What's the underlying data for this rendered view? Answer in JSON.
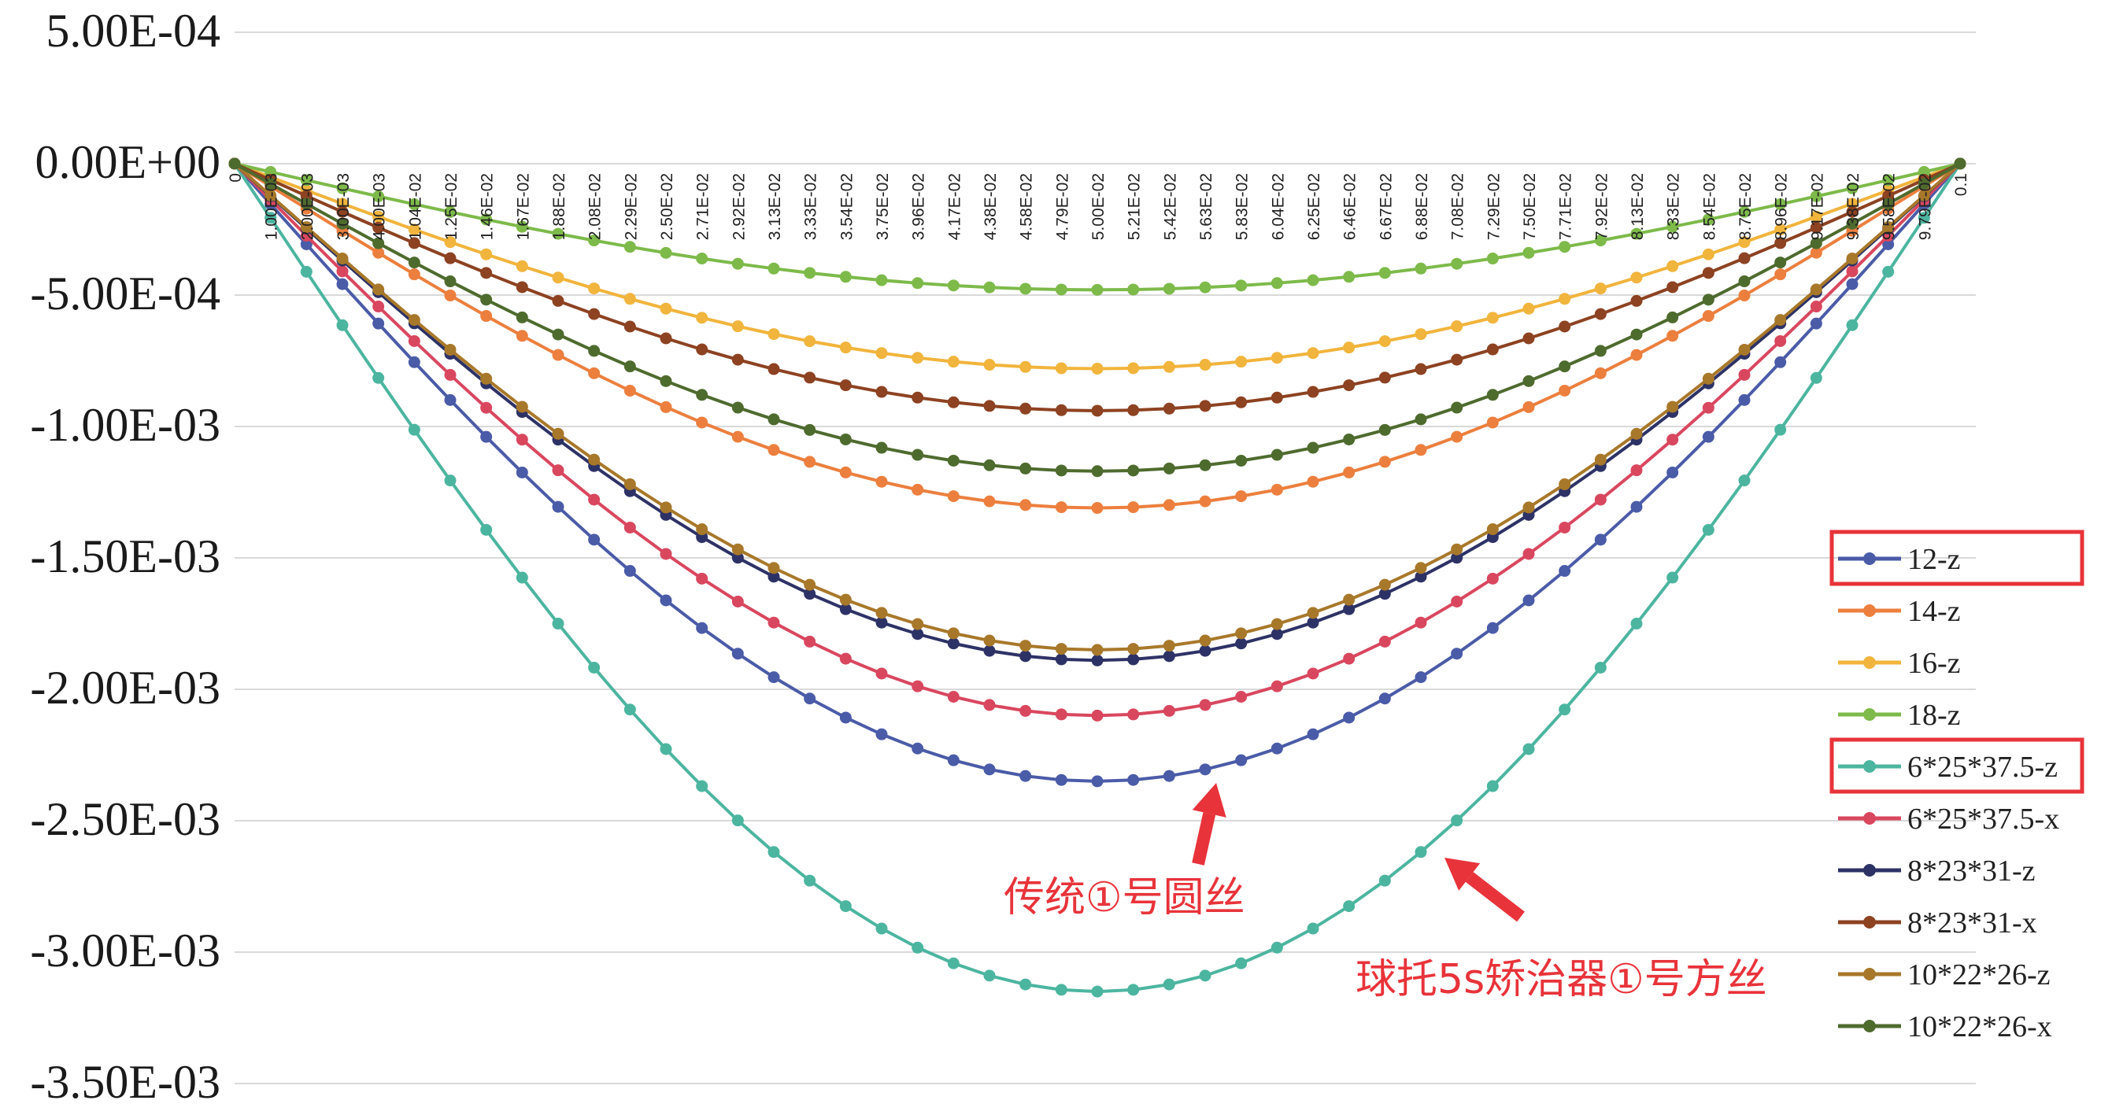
{
  "chart_data": {
    "type": "line",
    "title": "",
    "xlabel": "",
    "ylabel": "",
    "ylim": [
      -0.0035,
      0.0005
    ],
    "yticks": [
      "5.00E-04",
      "0.00E+00",
      "-5.00E-04",
      "-1.00E-03",
      "-1.50E-03",
      "-2.00E-03",
      "-2.50E-03",
      "-3.00E-03",
      "-3.50E-03"
    ],
    "ytick_values": [
      0.0005,
      0,
      -0.0005,
      -0.001,
      -0.0015,
      -0.002,
      -0.0025,
      -0.003,
      -0.0035
    ],
    "x_tick_labels": [
      "0",
      "1.00E-03",
      "2.00E-03",
      "3.00E-03",
      "4.00E-03",
      "1.04E-02",
      "1.25E-02",
      "1.46E-02",
      "1.67E-02",
      "1.88E-02",
      "2.08E-02",
      "2.29E-02",
      "2.50E-02",
      "2.71E-02",
      "2.92E-02",
      "3.13E-02",
      "3.33E-02",
      "3.54E-02",
      "3.75E-02",
      "3.96E-02",
      "4.17E-02",
      "4.38E-02",
      "4.58E-02",
      "4.79E-02",
      "5.00E-02",
      "5.21E-02",
      "5.42E-02",
      "5.63E-02",
      "5.83E-02",
      "6.04E-02",
      "6.25E-02",
      "6.46E-02",
      "6.67E-02",
      "6.88E-02",
      "7.08E-02",
      "7.29E-02",
      "7.50E-02",
      "7.71E-02",
      "7.92E-02",
      "8.13E-02",
      "8.33E-02",
      "8.54E-02",
      "8.75E-02",
      "8.96E-02",
      "9.17E-02",
      "9.38E-02",
      "9.58E-02",
      "9.79E-02",
      "0.1"
    ],
    "grid": true,
    "legend_position": "right",
    "series": [
      {
        "name": "12-z",
        "color": "#4a5ba8",
        "min": -0.00235
      },
      {
        "name": "14-z",
        "color": "#ec7f3e",
        "min": -0.00131
      },
      {
        "name": "16-z",
        "color": "#f1b43c",
        "min": -0.00078
      },
      {
        "name": "18-z",
        "color": "#7dba4a",
        "min": -0.00048
      },
      {
        "name": "6*25*37.5-z",
        "color": "#4cb5a0",
        "min": -0.00315
      },
      {
        "name": "6*25*37.5-x",
        "color": "#d9475f",
        "min": -0.0021
      },
      {
        "name": "8*23*31-z",
        "color": "#2d3266",
        "min": -0.00189
      },
      {
        "name": "8*23*31-x",
        "color": "#8d4221",
        "min": -0.00094
      },
      {
        "name": "10*22*26-z",
        "color": "#a8782a",
        "min": -0.00185
      },
      {
        "name": "10*22*26-x",
        "color": "#4e6b2e",
        "min": -0.00117
      }
    ],
    "highlighted_legend_entries": [
      "12-z",
      "6*25*37.5-z"
    ],
    "annotations": [
      {
        "text": "传统①号圆丝",
        "target_series": "12-z"
      },
      {
        "text": "球托5s矫治器①号方丝",
        "target_series": "6*25*37.5-z"
      }
    ]
  },
  "colors": {
    "annotation": "#e8333a",
    "grid": "#d9d9d9"
  }
}
